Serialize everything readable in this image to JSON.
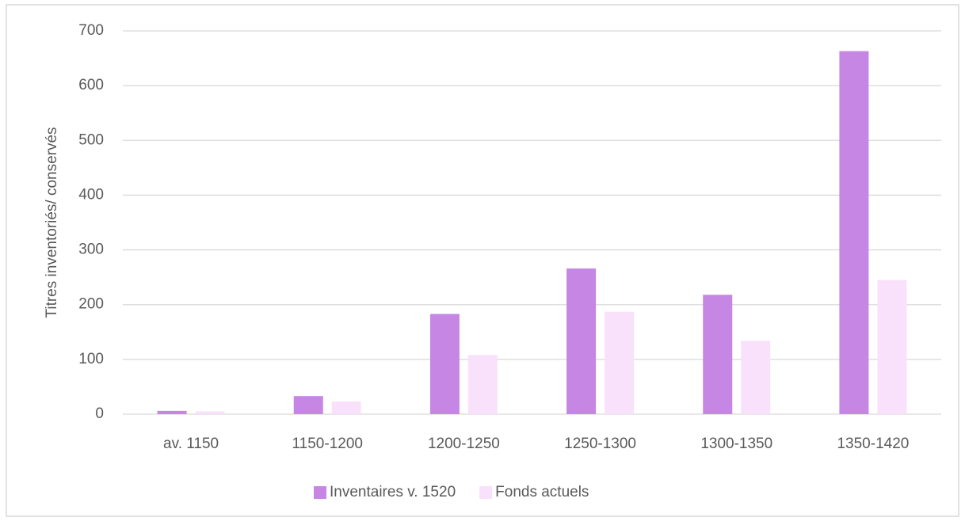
{
  "chart_data": {
    "type": "bar",
    "ylabel": "Titres inventoriés/ conservés",
    "categories": [
      "av. 1150",
      "1150-1200",
      "1200-1250",
      "1250-1300",
      "1300-1350",
      "1350-1420"
    ],
    "series": [
      {
        "name": "Inventaires v. 1520",
        "color": "#c586e4",
        "values": [
          6,
          33,
          183,
          266,
          218,
          663
        ]
      },
      {
        "name": "Fonds actuels",
        "color": "#f9e1fb",
        "values": [
          5,
          23,
          108,
          187,
          134,
          245
        ]
      }
    ],
    "ylim": [
      0,
      700
    ],
    "yticks": [
      0,
      100,
      200,
      300,
      400,
      500,
      600,
      700
    ],
    "grid": true,
    "legend": "bottom"
  }
}
